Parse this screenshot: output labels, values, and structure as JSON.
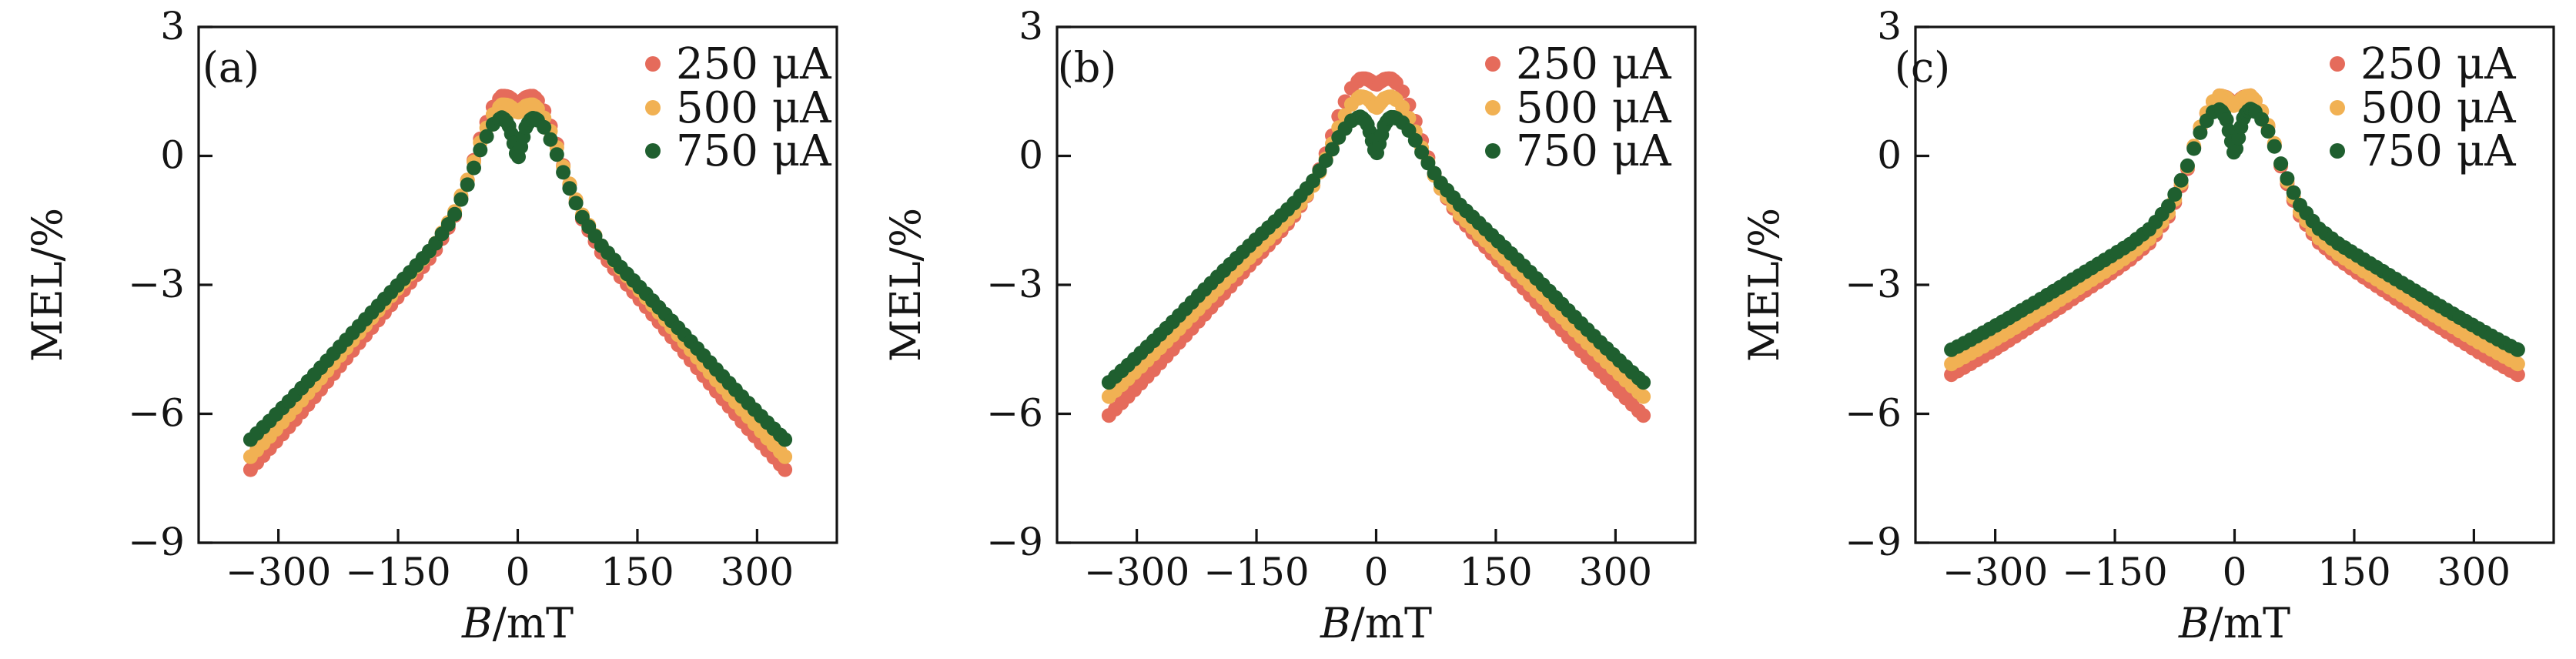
{
  "figure_background": "#ffffff",
  "ink_color": "#141414",
  "chart_data": [
    {
      "type": "scatter",
      "panel_label": "(a)",
      "xlabel_italic": "B",
      "xlabel_rest": "/mT",
      "ylabel": "MEL/%",
      "xlim": [
        -400,
        400
      ],
      "ylim": [
        -9,
        3
      ],
      "xticks": [
        -300,
        -150,
        0,
        150,
        300
      ],
      "xtick_labels": [
        "−300",
        "−150",
        "0",
        "150",
        "300"
      ],
      "yticks": [
        3,
        0,
        -3,
        -6,
        -9
      ],
      "ytick_labels": [
        "3",
        "0",
        "−3",
        "−6",
        "−9"
      ],
      "grid": false,
      "legend_position": "upper-right-inside",
      "legend_x": 848,
      "panel_label_x": 300,
      "x": [
        -335,
        -310,
        -280,
        -250,
        -220,
        -190,
        -160,
        -130,
        -105,
        -80,
        -60,
        -45,
        -30,
        -20,
        -15,
        -10,
        -5,
        0,
        5,
        10,
        15,
        20,
        30,
        45,
        60,
        80,
        105,
        130,
        160,
        190,
        220,
        250,
        280,
        310,
        335
      ],
      "series": [
        {
          "name": "250 μA",
          "color": "#E56B5B",
          "y": [
            -7.3,
            -6.79,
            -6.16,
            -5.5,
            -4.82,
            -4.15,
            -3.49,
            -2.84,
            -2.25,
            -1.44,
            -0.41,
            0.52,
            1.18,
            1.39,
            1.39,
            1.36,
            1.28,
            1.2,
            1.28,
            1.36,
            1.39,
            1.39,
            1.18,
            0.52,
            -0.41,
            -1.44,
            -2.25,
            -2.84,
            -3.49,
            -4.15,
            -4.82,
            -5.5,
            -6.16,
            -6.79,
            -7.3
          ]
        },
        {
          "name": "500 μA",
          "color": "#F1B153",
          "y": [
            -7.0,
            -6.51,
            -5.88,
            -5.24,
            -4.58,
            -3.92,
            -3.28,
            -2.65,
            -2.09,
            -1.34,
            -0.42,
            0.42,
            1.0,
            1.19,
            1.19,
            1.16,
            1.08,
            1.0,
            1.08,
            1.16,
            1.19,
            1.19,
            1.0,
            0.42,
            -0.42,
            -1.34,
            -2.09,
            -2.65,
            -3.28,
            -3.92,
            -4.58,
            -5.24,
            -5.88,
            -6.51,
            -7.0
          ]
        },
        {
          "name": "750 μA",
          "color": "#1F5F2F",
          "y": [
            -6.6,
            -6.15,
            -5.58,
            -4.99,
            -4.38,
            -3.78,
            -3.19,
            -2.61,
            -2.09,
            -1.4,
            -0.54,
            0.24,
            0.77,
            0.89,
            0.83,
            0.66,
            0.29,
            -0.1,
            0.29,
            0.66,
            0.83,
            0.89,
            0.77,
            0.24,
            -0.54,
            -1.4,
            -2.09,
            -2.61,
            -3.19,
            -3.78,
            -4.38,
            -4.99,
            -5.58,
            -6.15,
            -6.6
          ]
        }
      ]
    },
    {
      "type": "scatter",
      "panel_label": "(b)",
      "xlabel_italic": "B",
      "xlabel_rest": "/mT",
      "ylabel": "MEL/%",
      "xlim": [
        -400,
        400
      ],
      "ylim": [
        -9,
        3
      ],
      "xticks": [
        -300,
        -150,
        0,
        150,
        300
      ],
      "xtick_labels": [
        "−300",
        "−150",
        "0",
        "150",
        "300"
      ],
      "yticks": [
        3,
        0,
        -3,
        -6,
        -9
      ],
      "ytick_labels": [
        "3",
        "0",
        "−3",
        "−6",
        "−9"
      ],
      "grid": false,
      "legend_position": "upper-right-inside",
      "legend_x": 824,
      "panel_label_x": 297,
      "x": [
        -335,
        -310,
        -280,
        -250,
        -220,
        -190,
        -160,
        -130,
        -105,
        -80,
        -60,
        -45,
        -30,
        -20,
        -15,
        -10,
        -5,
        0,
        5,
        10,
        15,
        20,
        30,
        45,
        60,
        80,
        105,
        130,
        160,
        190,
        220,
        250,
        280,
        310,
        335
      ],
      "series": [
        {
          "name": "250 μA",
          "color": "#E56B5B",
          "y": [
            -6.04,
            -5.58,
            -5.0,
            -4.4,
            -3.79,
            -3.18,
            -2.57,
            -1.98,
            -1.45,
            -0.73,
            0.19,
            1.03,
            1.61,
            1.79,
            1.8,
            1.78,
            1.72,
            1.65,
            1.72,
            1.78,
            1.8,
            1.79,
            1.61,
            1.03,
            0.19,
            -0.73,
            -1.45,
            -1.98,
            -2.57,
            -3.18,
            -3.79,
            -4.4,
            -5.0,
            -5.58,
            -6.04
          ]
        },
        {
          "name": "500 μA",
          "color": "#F1B153",
          "y": [
            -5.6,
            -5.17,
            -4.63,
            -4.08,
            -3.51,
            -2.94,
            -2.39,
            -1.84,
            -1.36,
            -0.73,
            0.05,
            0.75,
            1.23,
            1.38,
            1.37,
            1.33,
            1.22,
            1.1,
            1.22,
            1.33,
            1.37,
            1.38,
            1.23,
            0.75,
            0.05,
            -0.73,
            -1.36,
            -1.84,
            -2.39,
            -2.94,
            -3.51,
            -4.08,
            -4.63,
            -5.17,
            -5.6
          ]
        },
        {
          "name": "750 μA",
          "color": "#1F5F2F",
          "y": [
            -5.27,
            -4.85,
            -4.32,
            -3.77,
            -3.2,
            -2.65,
            -2.11,
            -1.58,
            -1.14,
            -0.61,
            -0.02,
            0.5,
            0.84,
            0.91,
            0.85,
            0.7,
            0.35,
            0.0,
            0.35,
            0.7,
            0.85,
            0.91,
            0.84,
            0.5,
            -0.02,
            -0.61,
            -1.14,
            -1.58,
            -2.11,
            -2.65,
            -3.2,
            -3.77,
            -4.32,
            -4.85,
            -5.27
          ]
        }
      ]
    },
    {
      "type": "scatter",
      "panel_label": "(c)",
      "xlabel_italic": "B",
      "xlabel_rest": "/mT",
      "ylabel": "MEL/%",
      "xlim": [
        -400,
        400
      ],
      "ylim": [
        -9,
        3
      ],
      "xticks": [
        -300,
        -150,
        0,
        150,
        300
      ],
      "xtick_labels": [
        "−300",
        "−150",
        "0",
        "150",
        "300"
      ],
      "yticks": [
        3,
        0,
        -3,
        -6,
        -9
      ],
      "ytick_labels": [
        "3",
        "0",
        "−3",
        "−6",
        "−9"
      ],
      "grid": false,
      "legend_position": "upper-right-inside",
      "legend_x": 806,
      "panel_label_x": 267,
      "x": [
        -355,
        -335,
        -310,
        -280,
        -250,
        -220,
        -190,
        -160,
        -130,
        -105,
        -80,
        -60,
        -45,
        -30,
        -20,
        -15,
        -10,
        -5,
        0,
        5,
        10,
        15,
        20,
        30,
        45,
        60,
        80,
        105,
        130,
        160,
        190,
        220,
        250,
        280,
        310,
        335,
        355
      ],
      "series": [
        {
          "name": "250 μA",
          "color": "#E56B5B",
          "y": [
            -5.09,
            -4.88,
            -4.61,
            -4.26,
            -3.9,
            -3.54,
            -3.17,
            -2.8,
            -2.4,
            -2.0,
            -1.33,
            -0.36,
            0.56,
            1.2,
            1.4,
            1.39,
            1.36,
            1.28,
            1.2,
            1.28,
            1.36,
            1.39,
            1.4,
            1.2,
            0.56,
            -0.36,
            -1.33,
            -2.0,
            -2.4,
            -2.8,
            -3.17,
            -3.54,
            -3.9,
            -4.26,
            -4.61,
            -4.88,
            -5.09
          ]
        },
        {
          "name": "500 μA",
          "color": "#F1B153",
          "y": [
            -4.84,
            -4.64,
            -4.38,
            -4.05,
            -3.71,
            -3.36,
            -3.01,
            -2.66,
            -2.28,
            -1.9,
            -1.25,
            -0.31,
            0.59,
            1.21,
            1.4,
            1.39,
            1.35,
            1.25,
            1.15,
            1.25,
            1.35,
            1.39,
            1.4,
            1.21,
            0.59,
            -0.31,
            -1.25,
            -1.9,
            -2.28,
            -2.66,
            -3.01,
            -3.36,
            -3.71,
            -4.05,
            -4.38,
            -4.64,
            -4.84
          ]
        },
        {
          "name": "750 μA",
          "color": "#1F5F2F",
          "y": [
            -4.51,
            -4.32,
            -4.06,
            -3.74,
            -3.41,
            -3.07,
            -2.73,
            -2.39,
            -2.04,
            -1.68,
            -1.1,
            -0.28,
            0.47,
            0.99,
            1.09,
            1.02,
            0.84,
            0.42,
            0.0,
            0.42,
            0.84,
            1.02,
            1.09,
            0.99,
            0.47,
            -0.28,
            -1.1,
            -1.68,
            -2.04,
            -2.39,
            -2.73,
            -3.07,
            -3.41,
            -3.74,
            -4.06,
            -4.32,
            -4.51
          ]
        }
      ]
    }
  ]
}
